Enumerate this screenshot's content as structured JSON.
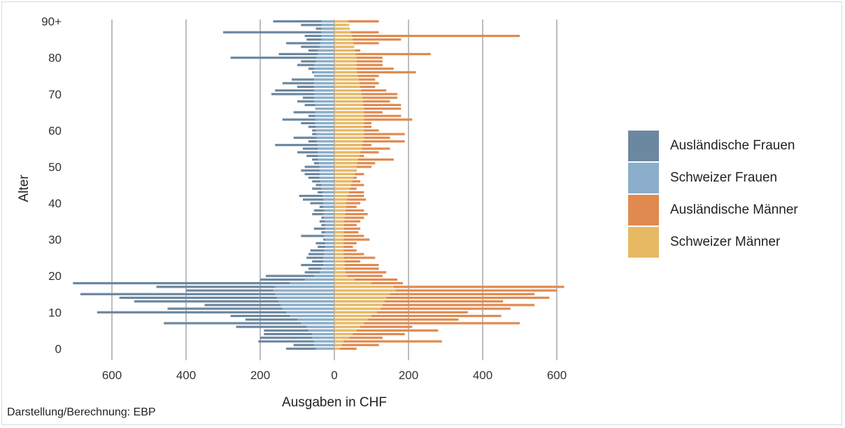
{
  "chart_data": {
    "type": "bar",
    "orientation": "horizontal-diverging",
    "xlabel": "Ausgaben in CHF",
    "ylabel": "Alter",
    "xticks": [
      600,
      400,
      200,
      0,
      200,
      400,
      600
    ],
    "xlim": [
      -700,
      700
    ],
    "yticks": [
      "0",
      "10",
      "20",
      "30",
      "40",
      "50",
      "60",
      "70",
      "80",
      "90+"
    ],
    "categories": [
      "0",
      "1",
      "2",
      "3",
      "4",
      "5",
      "6",
      "7",
      "8",
      "9",
      "10",
      "11",
      "12",
      "13",
      "14",
      "15",
      "16",
      "17",
      "18",
      "19",
      "20",
      "21",
      "22",
      "23",
      "24",
      "25",
      "26",
      "27",
      "28",
      "29",
      "30",
      "31",
      "32",
      "33",
      "34",
      "35",
      "36",
      "37",
      "38",
      "39",
      "40",
      "41",
      "42",
      "43",
      "44",
      "45",
      "46",
      "47",
      "48",
      "49",
      "50",
      "51",
      "52",
      "53",
      "54",
      "55",
      "56",
      "57",
      "58",
      "59",
      "60",
      "61",
      "62",
      "63",
      "64",
      "65",
      "66",
      "67",
      "68",
      "69",
      "70",
      "71",
      "72",
      "73",
      "74",
      "75",
      "76",
      "77",
      "78",
      "79",
      "80",
      "81",
      "82",
      "83",
      "84",
      "85",
      "86",
      "87",
      "88",
      "89",
      "90+"
    ],
    "series": [
      {
        "name": "Ausländische Frauen",
        "color": "#6c87a0",
        "side": "left",
        "values": [
          130,
          110,
          205,
          200,
          190,
          190,
          265,
          460,
          240,
          280,
          640,
          450,
          350,
          540,
          580,
          685,
          400,
          480,
          705,
          200,
          185,
          80,
          70,
          90,
          60,
          75,
          70,
          65,
          45,
          50,
          30,
          90,
          35,
          55,
          35,
          40,
          35,
          60,
          55,
          40,
          65,
          85,
          95,
          45,
          60,
          50,
          60,
          70,
          80,
          90,
          80,
          55,
          60,
          75,
          100,
          85,
          160,
          70,
          110,
          60,
          60,
          70,
          90,
          140,
          70,
          110,
          50,
          80,
          100,
          85,
          170,
          160,
          100,
          140,
          115,
          50,
          60,
          70,
          100,
          90,
          280,
          150,
          70,
          90,
          130,
          75,
          80,
          300,
          50,
          90,
          165
        ]
      },
      {
        "name": "Schweizer Frauen",
        "color": "#8aaecb",
        "side": "left",
        "values": [
          50,
          55,
          55,
          60,
          60,
          70,
          75,
          90,
          100,
          120,
          130,
          140,
          145,
          150,
          155,
          160,
          165,
          160,
          120,
          80,
          55,
          40,
          35,
          30,
          30,
          30,
          28,
          28,
          25,
          25,
          25,
          28,
          25,
          25,
          25,
          25,
          28,
          30,
          28,
          30,
          30,
          30,
          32,
          32,
          35,
          35,
          38,
          40,
          40,
          40,
          40,
          42,
          45,
          45,
          45,
          45,
          45,
          48,
          48,
          48,
          50,
          50,
          52,
          52,
          52,
          52,
          52,
          52,
          55,
          55,
          55,
          55,
          55,
          55,
          55,
          55,
          55,
          55,
          55,
          50,
          48,
          45,
          45,
          40,
          38,
          35,
          35,
          35,
          35,
          35,
          35
        ]
      },
      {
        "name": "Ausländische Männer",
        "color": "#e08a4f",
        "side": "right",
        "values": [
          60,
          120,
          290,
          130,
          190,
          280,
          210,
          500,
          335,
          450,
          360,
          475,
          540,
          455,
          580,
          540,
          600,
          620,
          185,
          170,
          130,
          140,
          120,
          120,
          70,
          110,
          80,
          60,
          50,
          60,
          95,
          80,
          65,
          70,
          60,
          70,
          80,
          90,
          80,
          60,
          70,
          85,
          80,
          80,
          60,
          80,
          70,
          60,
          80,
          60,
          100,
          110,
          160,
          80,
          120,
          150,
          100,
          190,
          150,
          190,
          120,
          100,
          100,
          210,
          180,
          130,
          180,
          180,
          150,
          170,
          170,
          140,
          110,
          120,
          110,
          120,
          220,
          160,
          130,
          130,
          130,
          260,
          70,
          50,
          120,
          180,
          500,
          120,
          20,
          30,
          120
        ]
      },
      {
        "name": "Schweizer Männer",
        "color": "#e8b963",
        "side": "right",
        "values": [
          15,
          20,
          25,
          40,
          50,
          60,
          70,
          80,
          90,
          100,
          115,
          125,
          130,
          135,
          140,
          150,
          165,
          160,
          100,
          55,
          35,
          30,
          28,
          28,
          28,
          26,
          25,
          25,
          25,
          25,
          25,
          26,
          26,
          26,
          26,
          26,
          28,
          30,
          30,
          32,
          32,
          34,
          36,
          40,
          42,
          45,
          48,
          52,
          55,
          58,
          60,
          62,
          64,
          68,
          70,
          74,
          76,
          78,
          80,
          80,
          80,
          80,
          80,
          80,
          80,
          80,
          80,
          78,
          78,
          76,
          74,
          72,
          70,
          68,
          66,
          64,
          62,
          60,
          60,
          60,
          60,
          58,
          56,
          54,
          52,
          50,
          48,
          45,
          42,
          40,
          38
        ]
      }
    ],
    "legend_position": "right",
    "grid": "vertical"
  },
  "footer": {
    "source": "Darstellung/Berechnung: EBP"
  }
}
